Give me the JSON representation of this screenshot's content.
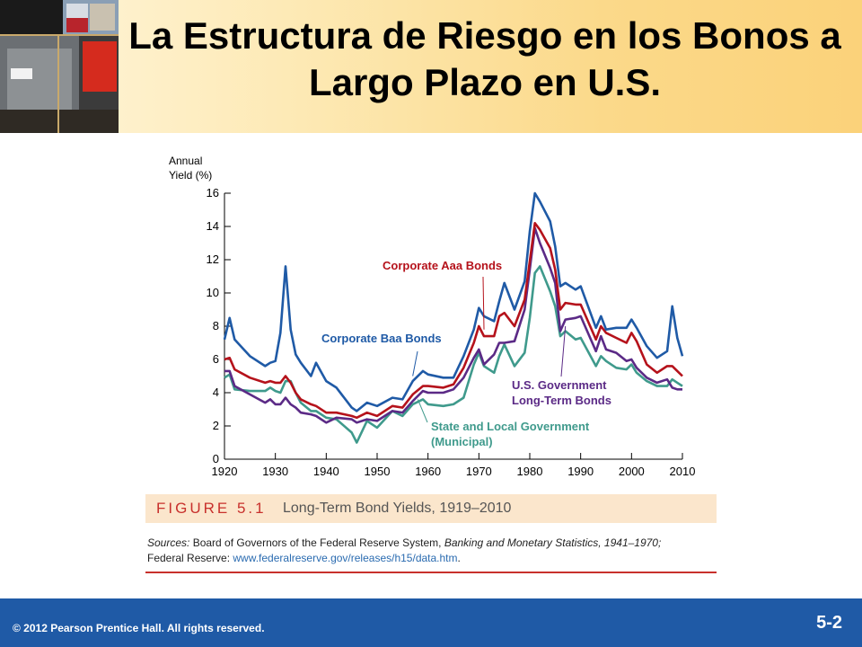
{
  "slide": {
    "title": "La Estructura de Riesgo en los Bonos a Largo Plazo en U.S.",
    "copyright": "© 2012 Pearson Prentice Hall. All rights reserved.",
    "slide_number": "5-2"
  },
  "figure": {
    "label": "FIGURE 5.1",
    "caption": "Long-Term Bond Yields, 1919–2010",
    "sources_label": "Sources:",
    "sources_text_1": " Board of Governors of the Federal Reserve System, ",
    "sources_italic": "Banking and Monetary Statistics, 1941–1970;",
    "sources_text_2": "Federal Reserve: ",
    "sources_url": "www.federalreserve.gov/releases/h15/data.htm",
    "sources_end": "."
  },
  "colors": {
    "baa": "#1f5aa6",
    "aaa": "#b5121b",
    "treasury": "#5b2a86",
    "municipal": "#3f9a8c",
    "accent_red": "#c8302c",
    "footer_blue": "#1f5aa6"
  },
  "chart_data": {
    "type": "line",
    "title": "",
    "xlabel": "",
    "ylabel": "Annual Yield (%)",
    "ylabel_lines": [
      "Annual",
      "Yield (%)"
    ],
    "xlim": [
      1920,
      2010
    ],
    "ylim": [
      0,
      16
    ],
    "xticks": [
      1920,
      1930,
      1940,
      1950,
      1960,
      1970,
      1980,
      1990,
      2000,
      2010
    ],
    "yticks": [
      0,
      2,
      4,
      6,
      8,
      10,
      12,
      14,
      16
    ],
    "grid": false,
    "x": [
      1920,
      1921,
      1922,
      1925,
      1928,
      1929,
      1930,
      1931,
      1932,
      1933,
      1934,
      1935,
      1937,
      1938,
      1940,
      1942,
      1945,
      1946,
      1948,
      1950,
      1953,
      1955,
      1957,
      1959,
      1960,
      1963,
      1965,
      1967,
      1969,
      1970,
      1971,
      1973,
      1974,
      1975,
      1977,
      1979,
      1980,
      1981,
      1982,
      1984,
      1985,
      1986,
      1987,
      1989,
      1990,
      1993,
      1994,
      1995,
      1997,
      1999,
      2000,
      2001,
      2003,
      2005,
      2007,
      2008,
      2009,
      2010
    ],
    "series": [
      {
        "name": "Corporate Baa Bonds",
        "color_key": "baa",
        "values": [
          7.2,
          8.5,
          7.2,
          6.2,
          5.6,
          5.8,
          5.9,
          7.6,
          11.6,
          7.8,
          6.3,
          5.8,
          5.0,
          5.8,
          4.7,
          4.3,
          3.1,
          2.9,
          3.4,
          3.2,
          3.7,
          3.6,
          4.7,
          5.3,
          5.1,
          4.9,
          4.9,
          6.2,
          7.8,
          9.1,
          8.6,
          8.3,
          9.5,
          10.6,
          9.0,
          10.7,
          13.7,
          16.0,
          15.5,
          14.3,
          12.8,
          10.4,
          10.6,
          10.2,
          10.4,
          7.9,
          8.6,
          7.8,
          7.9,
          7.9,
          8.4,
          7.9,
          6.8,
          6.1,
          6.5,
          9.2,
          7.3,
          6.2
        ]
      },
      {
        "name": "Corporate Aaa Bonds",
        "color_key": "aaa",
        "values": [
          6.0,
          6.1,
          5.4,
          4.9,
          4.6,
          4.7,
          4.6,
          4.6,
          5.0,
          4.6,
          4.0,
          3.6,
          3.3,
          3.2,
          2.8,
          2.8,
          2.6,
          2.5,
          2.8,
          2.6,
          3.2,
          3.1,
          3.9,
          4.4,
          4.4,
          4.3,
          4.5,
          5.5,
          7.0,
          8.0,
          7.4,
          7.4,
          8.6,
          8.8,
          8.0,
          9.6,
          11.9,
          14.2,
          13.8,
          12.7,
          11.4,
          9.0,
          9.4,
          9.3,
          9.3,
          7.2,
          8.0,
          7.6,
          7.3,
          7.0,
          7.6,
          7.1,
          5.7,
          5.2,
          5.6,
          5.6,
          5.3,
          5.0
        ]
      },
      {
        "name": "U.S. Government Long-Term Bonds",
        "color_key": "treasury",
        "values": [
          5.3,
          5.3,
          4.4,
          3.9,
          3.4,
          3.6,
          3.3,
          3.3,
          3.7,
          3.3,
          3.1,
          2.8,
          2.7,
          2.6,
          2.2,
          2.5,
          2.4,
          2.2,
          2.4,
          2.3,
          2.9,
          2.8,
          3.5,
          4.1,
          4.0,
          4.0,
          4.2,
          4.9,
          6.1,
          6.6,
          5.7,
          6.3,
          7.0,
          7.0,
          7.1,
          9.0,
          11.4,
          13.9,
          13.0,
          11.5,
          10.6,
          7.7,
          8.4,
          8.5,
          8.6,
          6.5,
          7.4,
          6.6,
          6.4,
          5.9,
          6.0,
          5.5,
          4.9,
          4.6,
          4.8,
          4.3,
          4.2,
          4.2
        ]
      },
      {
        "name": "State and Local Government (Municipal)",
        "color_key": "municipal",
        "values": [
          4.9,
          5.1,
          4.2,
          4.1,
          4.1,
          4.3,
          4.1,
          4.0,
          4.7,
          4.7,
          4.0,
          3.4,
          2.9,
          2.9,
          2.5,
          2.4,
          1.6,
          1.0,
          2.3,
          1.9,
          2.9,
          2.6,
          3.3,
          3.6,
          3.3,
          3.2,
          3.3,
          3.7,
          5.7,
          6.4,
          5.6,
          5.2,
          6.2,
          6.9,
          5.6,
          6.4,
          8.5,
          11.2,
          11.6,
          10.1,
          9.2,
          7.4,
          7.7,
          7.2,
          7.3,
          5.6,
          6.2,
          5.9,
          5.5,
          5.4,
          5.7,
          5.2,
          4.7,
          4.4,
          4.4,
          4.8,
          4.6,
          4.4
        ]
      }
    ],
    "annotations": [
      {
        "lines": [
          "Corporate Aaa Bonds"
        ],
        "color_key": "aaa",
        "points_to": [
          1971,
          7.8
        ]
      },
      {
        "lines": [
          "Corporate Baa Bonds"
        ],
        "color_key": "baa",
        "points_to": [
          1957,
          5.0
        ]
      },
      {
        "lines": [
          "U.S. Government",
          "Long-Term Bonds"
        ],
        "color_key": "treasury",
        "points_to": [
          1987,
          8.0
        ]
      },
      {
        "lines": [
          "State and Local Government",
          "(Municipal)"
        ],
        "color_key": "municipal",
        "points_to": [
          1958,
          3.6
        ]
      }
    ]
  }
}
